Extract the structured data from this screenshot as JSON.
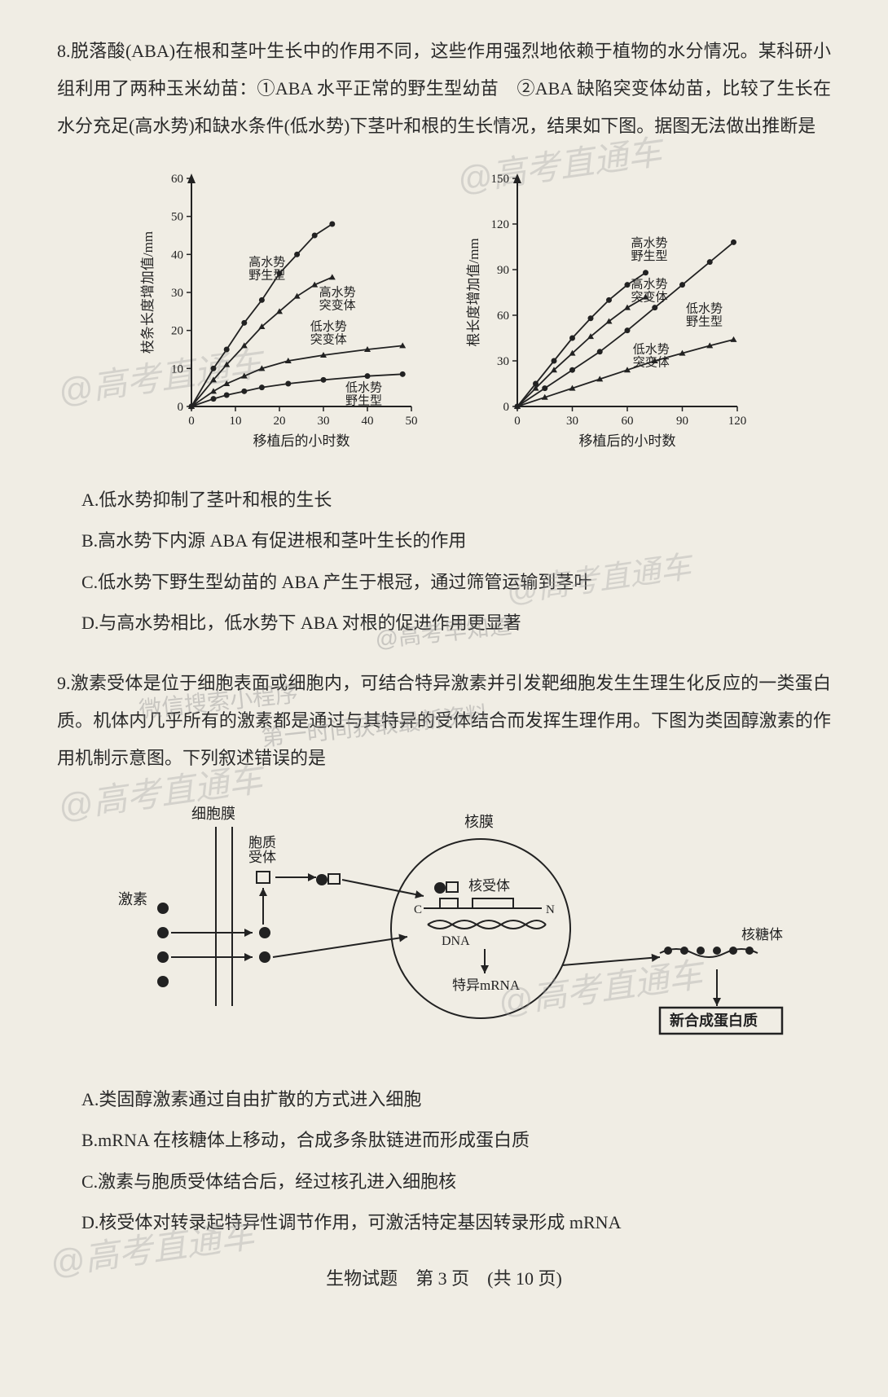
{
  "q8": {
    "number": "8.",
    "text": "脱落酸(ABA)在根和茎叶生长中的作用不同，这些作用强烈地依赖于植物的水分情况。某科研小组利用了两种玉米幼苗：①ABA 水平正常的野生型幼苗　②ABA 缺陷突变体幼苗，比较了生长在水分充足(高水势)和缺水条件(低水势)下茎叶和根的生长情况，结果如下图。据图无法做出推断是",
    "chart1": {
      "type": "line",
      "xlabel": "移植后的小时数",
      "ylabel": "枝条长度增加值/mm",
      "xlim": [
        0,
        50
      ],
      "ylim": [
        0,
        60
      ],
      "xticks": [
        0,
        10,
        20,
        30,
        40,
        50
      ],
      "yticks": [
        0,
        10,
        20,
        30,
        40,
        50,
        60
      ],
      "background_color": "#f0ede4",
      "axis_color": "#222222",
      "series": [
        {
          "label": "高水势\n野生型",
          "marker": "circle",
          "label_pos": [
            13,
            37
          ],
          "points": [
            [
              0,
              0
            ],
            [
              5,
              10
            ],
            [
              8,
              15
            ],
            [
              12,
              22
            ],
            [
              16,
              28
            ],
            [
              20,
              35
            ],
            [
              24,
              40
            ],
            [
              28,
              45
            ],
            [
              32,
              48
            ]
          ]
        },
        {
          "label": "高水势\n突变体",
          "marker": "triangle",
          "label_pos": [
            29,
            29
          ],
          "points": [
            [
              0,
              0
            ],
            [
              5,
              7
            ],
            [
              8,
              11
            ],
            [
              12,
              16
            ],
            [
              16,
              21
            ],
            [
              20,
              25
            ],
            [
              24,
              29
            ],
            [
              28,
              32
            ],
            [
              32,
              34
            ]
          ]
        },
        {
          "label": "低水势\n突变体",
          "marker": "triangle",
          "label_pos": [
            27,
            20
          ],
          "points": [
            [
              0,
              0
            ],
            [
              5,
              4
            ],
            [
              8,
              6
            ],
            [
              12,
              8
            ],
            [
              16,
              10
            ],
            [
              22,
              12
            ],
            [
              30,
              13.5
            ],
            [
              40,
              15
            ],
            [
              48,
              16
            ]
          ]
        },
        {
          "label": "低水势\n野生型",
          "marker": "circle",
          "label_pos": [
            35,
            4
          ],
          "points": [
            [
              0,
              0
            ],
            [
              5,
              2
            ],
            [
              8,
              3
            ],
            [
              12,
              4
            ],
            [
              16,
              5
            ],
            [
              22,
              6
            ],
            [
              30,
              7
            ],
            [
              40,
              8
            ],
            [
              48,
              8.5
            ]
          ]
        }
      ]
    },
    "chart2": {
      "type": "line",
      "xlabel": "移植后的小时数",
      "ylabel": "根长度增加值/mm",
      "xlim": [
        0,
        120
      ],
      "ylim": [
        0,
        150
      ],
      "xticks": [
        0,
        30,
        60,
        90,
        120
      ],
      "yticks": [
        0,
        30,
        60,
        90,
        120,
        150
      ],
      "background_color": "#f0ede4",
      "axis_color": "#222222",
      "series": [
        {
          "label": "高水势\n野生型",
          "marker": "circle",
          "label_pos": [
            62,
            105
          ],
          "points": [
            [
              0,
              0
            ],
            [
              10,
              15
            ],
            [
              20,
              30
            ],
            [
              30,
              45
            ],
            [
              40,
              58
            ],
            [
              50,
              70
            ],
            [
              60,
              80
            ],
            [
              70,
              88
            ]
          ]
        },
        {
          "label": "高水势\n突变体",
          "marker": "triangle",
          "label_pos": [
            62,
            78
          ],
          "points": [
            [
              0,
              0
            ],
            [
              10,
              12
            ],
            [
              20,
              24
            ],
            [
              30,
              35
            ],
            [
              40,
              46
            ],
            [
              50,
              56
            ],
            [
              60,
              65
            ],
            [
              70,
              72
            ]
          ]
        },
        {
          "label": "低水势\n野生型",
          "marker": "circle",
          "label_pos": [
            92,
            62
          ],
          "points": [
            [
              0,
              0
            ],
            [
              15,
              12
            ],
            [
              30,
              24
            ],
            [
              45,
              36
            ],
            [
              60,
              50
            ],
            [
              75,
              65
            ],
            [
              90,
              80
            ],
            [
              105,
              95
            ],
            [
              118,
              108
            ]
          ]
        },
        {
          "label": "低水势\n突变体",
          "marker": "triangle",
          "label_pos": [
            63,
            35
          ],
          "points": [
            [
              0,
              0
            ],
            [
              15,
              6
            ],
            [
              30,
              12
            ],
            [
              45,
              18
            ],
            [
              60,
              24
            ],
            [
              75,
              30
            ],
            [
              90,
              35
            ],
            [
              105,
              40
            ],
            [
              118,
              44
            ]
          ]
        }
      ]
    },
    "options": {
      "A": "A.低水势抑制了茎叶和根的生长",
      "B": "B.高水势下内源 ABA 有促进根和茎叶生长的作用",
      "C": "C.低水势下野生型幼苗的 ABA 产生于根冠，通过筛管运输到茎叶",
      "D": "D.与高水势相比，低水势下 ABA 对根的促进作用更显著"
    }
  },
  "q9": {
    "number": "9.",
    "text": "激素受体是位于细胞表面或细胞内，可结合特异激素并引发靶细胞发生生理生化反应的一类蛋白质。机体内几乎所有的激素都是通过与其特异的受体结合而发挥生理作用。下图为类固醇激素的作用机制示意图。下列叙述错误的是",
    "diagram": {
      "labels": {
        "hormone": "激素",
        "cell_membrane": "细胞膜",
        "cyto_receptor": "胞质\n受体",
        "nuclear_membrane": "核膜",
        "nuclear_receptor": "核受体",
        "dna": "DNA",
        "mrna": "特异mRNA",
        "ribosome": "核糖体",
        "new_protein": "新合成蛋白质",
        "c_terminus": "C",
        "n_terminus": "N"
      },
      "colors": {
        "line": "#222222",
        "fill_dot": "#222222",
        "box_border": "#222222",
        "background": "#f0ede4"
      }
    },
    "options": {
      "A": "A.类固醇激素通过自由扩散的方式进入细胞",
      "B": "B.mRNA 在核糖体上移动，合成多条肽链进而形成蛋白质",
      "C": "C.激素与胞质受体结合后，经过核孔进入细胞核",
      "D": "D.核受体对转录起特异性调节作用，可激活特定基因转录形成 mRNA"
    }
  },
  "footer": "生物试题　第 3 页　(共 10 页)",
  "watermarks": {
    "main": "@高考直通车",
    "alt1": "@高考早知道",
    "alt2": "微信搜索小程序",
    "alt3": "第一时间获取最新资料"
  }
}
